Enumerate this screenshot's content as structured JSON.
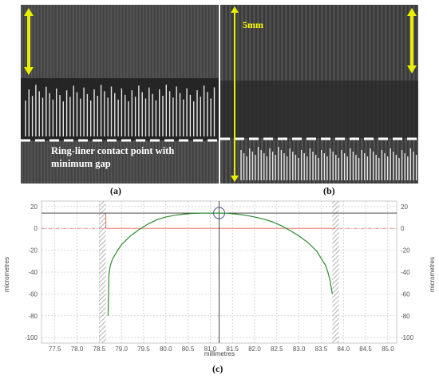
{
  "panel_a": {
    "caption": "(a)",
    "annotation_line1": "Ring-liner contact point with",
    "annotation_line2": "minimum gap"
  },
  "panel_b": {
    "caption": "(b)",
    "scale_label": "5mm"
  },
  "panel_c": {
    "caption": "(c)"
  },
  "colors": {
    "scale_arrow": "#e8f000",
    "dashed_line": "#ffffff",
    "profile_curve": "#2e8b2e",
    "reference_line": "#e06050",
    "crosshair": "#333333"
  },
  "chart_data": {
    "type": "line",
    "title": "",
    "xlabel": "millimetres",
    "ylabel": "micrometres",
    "ylabel_right": "micrometres",
    "xlim": [
      77.2,
      85.2
    ],
    "ylim": [
      -105,
      25
    ],
    "xticks": [
      "77.5",
      "78.0",
      "78.5",
      "79.0",
      "79.5",
      "80.0",
      "80.5",
      "81.0",
      "81.5",
      "82.0",
      "82.5",
      "83.0",
      "83.5",
      "84.0",
      "84.5",
      "85.0"
    ],
    "yticks": [
      "20",
      "0",
      "-20",
      "-40",
      "-60",
      "-80",
      "-100"
    ],
    "grid": true,
    "hatched_bands_x": [
      [
        78.5,
        78.65
      ],
      [
        83.75,
        83.9
      ]
    ],
    "crosshair": {
      "x": 81.2,
      "y": 14
    },
    "reference_line_y": 0,
    "series": [
      {
        "x": [
          78.7,
          78.72,
          78.75,
          78.8,
          78.9,
          79.0,
          79.2,
          79.4,
          79.6,
          79.8,
          80.0,
          80.2,
          80.4,
          80.6,
          80.8,
          81.0,
          81.2,
          81.4,
          81.6,
          81.8,
          82.0,
          82.2,
          82.4,
          82.6,
          82.8,
          83.0,
          83.2,
          83.4,
          83.6,
          83.65,
          83.7,
          83.75
        ],
        "y": [
          -80,
          -42,
          -34,
          -28,
          -21,
          -15,
          -7,
          -1,
          4,
          8,
          10.5,
          12,
          13,
          13.7,
          14,
          14,
          14,
          13.8,
          13,
          12,
          10.5,
          8.5,
          6,
          2.5,
          -2,
          -7,
          -13,
          -21,
          -34,
          -40,
          -48,
          -60
        ]
      }
    ]
  }
}
